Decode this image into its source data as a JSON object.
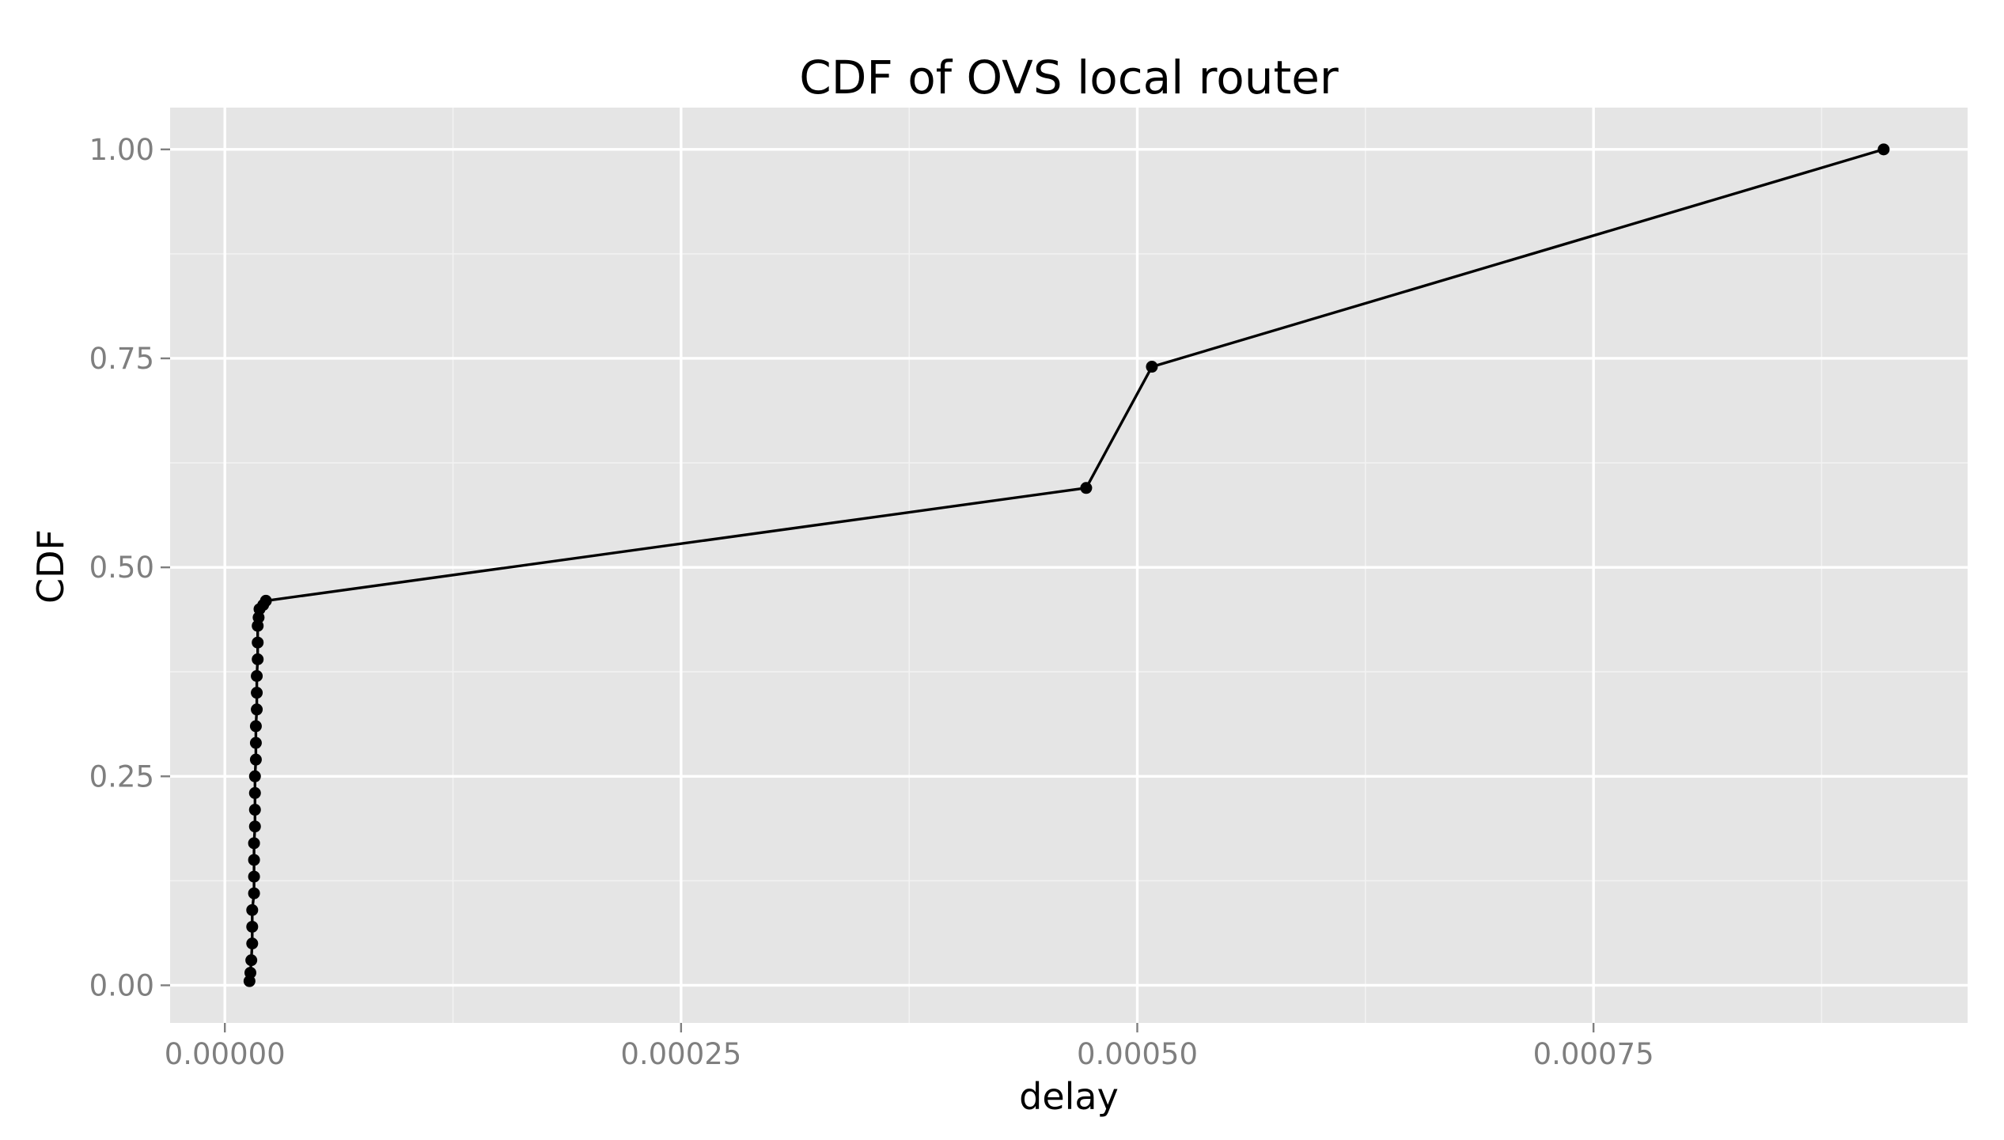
{
  "chart_data": {
    "type": "line",
    "title": "CDF of OVS local router",
    "xlabel": "delay",
    "ylabel": "CDF",
    "xlim": [
      -3e-05,
      0.000955
    ],
    "ylim": [
      -0.045,
      1.05
    ],
    "x_ticks": [
      0.0,
      0.00025,
      0.0005,
      0.00075
    ],
    "x_tick_labels": [
      "0.00000",
      "0.00025",
      "0.00050",
      "0.00075"
    ],
    "y_ticks": [
      0.0,
      0.25,
      0.5,
      0.75,
      1.0
    ],
    "y_tick_labels": [
      "0.00",
      "0.25",
      "0.50",
      "0.75",
      "1.00"
    ],
    "grid": true,
    "legend": "none",
    "colors": {
      "panel_background": "#e5e5e5",
      "grid_major": "#ffffff",
      "grid_minor": "#f2f2f2",
      "series": "#000000",
      "tick_label": "#7f7f7f"
    },
    "series": [
      {
        "points": [
          {
            "x": 1.35e-05,
            "y": 0.005
          },
          {
            "x": 1.4e-05,
            "y": 0.015
          },
          {
            "x": 1.45e-05,
            "y": 0.03
          },
          {
            "x": 1.5e-05,
            "y": 0.05
          },
          {
            "x": 1.5e-05,
            "y": 0.07
          },
          {
            "x": 1.5e-05,
            "y": 0.09
          },
          {
            "x": 1.6e-05,
            "y": 0.11
          },
          {
            "x": 1.6e-05,
            "y": 0.13
          },
          {
            "x": 1.6e-05,
            "y": 0.15
          },
          {
            "x": 1.6e-05,
            "y": 0.17
          },
          {
            "x": 1.65e-05,
            "y": 0.19
          },
          {
            "x": 1.65e-05,
            "y": 0.21
          },
          {
            "x": 1.65e-05,
            "y": 0.23
          },
          {
            "x": 1.65e-05,
            "y": 0.25
          },
          {
            "x": 1.7e-05,
            "y": 0.27
          },
          {
            "x": 1.7e-05,
            "y": 0.29
          },
          {
            "x": 1.7e-05,
            "y": 0.31
          },
          {
            "x": 1.75e-05,
            "y": 0.33
          },
          {
            "x": 1.75e-05,
            "y": 0.35
          },
          {
            "x": 1.75e-05,
            "y": 0.37
          },
          {
            "x": 1.8e-05,
            "y": 0.39
          },
          {
            "x": 1.8e-05,
            "y": 0.41
          },
          {
            "x": 1.8e-05,
            "y": 0.43
          },
          {
            "x": 1.85e-05,
            "y": 0.44
          },
          {
            "x": 1.9e-05,
            "y": 0.45
          },
          {
            "x": 2.1e-05,
            "y": 0.455
          },
          {
            "x": 2.25e-05,
            "y": 0.46
          },
          {
            "x": 0.000472,
            "y": 0.595
          },
          {
            "x": 0.000508,
            "y": 0.74
          },
          {
            "x": 0.000909,
            "y": 1.0
          }
        ]
      }
    ]
  }
}
